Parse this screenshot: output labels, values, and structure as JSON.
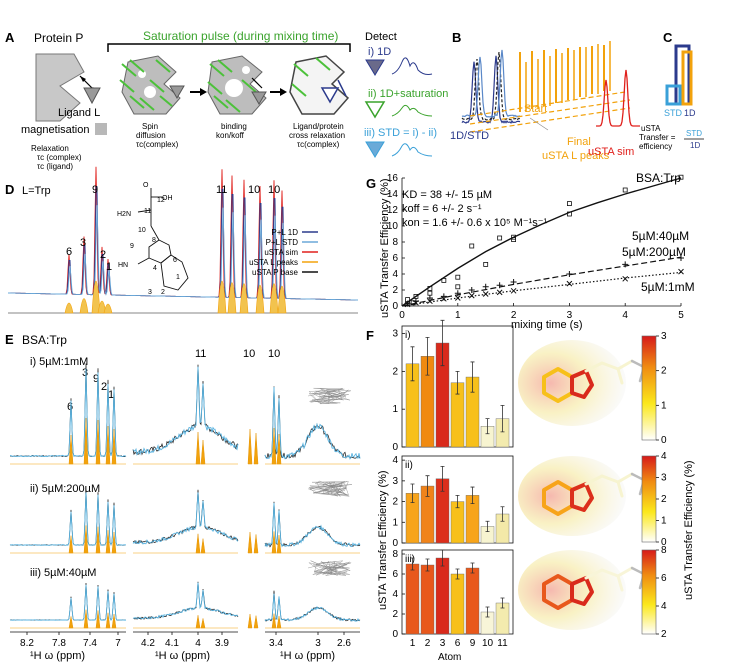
{
  "panel_labels": {
    "A": "A",
    "B": "B",
    "C": "C",
    "D": "D",
    "E": "E",
    "F": "F",
    "G": "G"
  },
  "panelA": {
    "protein": "Protein P",
    "saturation": "Saturation pulse (during mixing time)",
    "ligand": "Ligand L",
    "magnetisation": "magnetisation",
    "detect": "Detect",
    "d1": "i) 1D",
    "d2": "ii) 1D+saturation",
    "d3": "iii) STD = i) - ii)",
    "relax1": "Relaxation",
    "relax2": "τc (complex)",
    "relax3": "τc (ligand)",
    "spin1": "Spin",
    "spin2": "diffusion",
    "spin3": "τc(complex)",
    "bind1": "binding",
    "bind2": "kon/koff",
    "cross1": "Ligand/protein",
    "cross2": "cross relaxation",
    "cross3": "τc(complex)"
  },
  "panelB": {
    "l1": "1D/STD",
    "l2": "Start",
    "l3": "Final",
    "l4": "uSTA L peaks",
    "l5": "uSTA sim"
  },
  "panelC": {
    "std": "STD",
    "d1": "1D",
    "t1": "uSTA",
    "t2": "Transfer =",
    "t3": "efficiency",
    "frac_top": "STD",
    "frac_bot": "1D"
  },
  "panelD": {
    "title": "L=Trp",
    "legend": [
      "P+L 1D",
      "P+L STD",
      "uSTA sim",
      "uSTA L peaks",
      "uSTA P base"
    ],
    "legend_colors": [
      "#2b3a8c",
      "#6aa8d8",
      "#e0201c",
      "#f2a20c",
      "#111111"
    ],
    "peaks": [
      "6",
      "3",
      "9",
      "2",
      "1",
      "11",
      "10",
      "10"
    ],
    "atoms": [
      "O",
      "OH",
      "H2N",
      "12",
      "11",
      "10",
      "9",
      "8",
      "HN",
      "1",
      "2",
      "3",
      "4",
      "5",
      "6",
      "7"
    ]
  },
  "panelE": {
    "title": "BSA:Trp",
    "rows": [
      "i) 5µM:1mM",
      "ii) 5µM:200µM",
      "iii) 5µM:40µM"
    ],
    "peaks": [
      "6",
      "3",
      "9",
      "2",
      "1",
      "11",
      "10",
      "10"
    ],
    "ticks1": [
      "8.2",
      "7.8",
      "7.4",
      "7"
    ],
    "ticks2": [
      "4.2",
      "4.1",
      "4",
      "3.9"
    ],
    "ticks3": [
      "3.4",
      "3",
      "2.6"
    ],
    "xlabel": "¹H ω (ppm)"
  },
  "panelG": {
    "kd": "KD = 38 +/- 15 µM",
    "koff": "koff = 6 +/- 2 s⁻¹",
    "kon": "kon = 1.6 +/- 0.6 x 10⁵ M⁻¹s⁻¹",
    "title": "BSA:Trp",
    "s1": "5µM:40µM",
    "s2": "5µM:200µM",
    "s3": "5µM:1mM",
    "xlabel": "mixing time (s)",
    "ylabel": "uSTA Transfer Efficiency (%)"
  },
  "panelF": {
    "ylabel": "uSTA Transfer Efficiency (%)",
    "xlabel": "Atom",
    "cbar_label": "uSTA Transfer Efficiency (%)",
    "sub": [
      "i)",
      "ii)",
      "iii)"
    ]
  },
  "chart_data": [
    {
      "type": "scatter",
      "title": "BSA:Trp",
      "xlabel": "mixing time (s)",
      "ylabel": "uSTA Transfer Efficiency (%)",
      "xlim": [
        0,
        5
      ],
      "ylim": [
        0,
        16
      ],
      "xticks": [
        0,
        1,
        2,
        3,
        4,
        5
      ],
      "yticks": [
        0,
        2,
        4,
        6,
        8,
        10,
        12,
        14,
        16
      ],
      "series": [
        {
          "name": "5µM:40µM",
          "marker": "square",
          "line": "solid",
          "x": [
            0.1,
            0.2,
            0.25,
            0.5,
            0.5,
            0.75,
            1,
            1,
            1.25,
            1.5,
            1.75,
            2,
            2,
            3,
            3,
            4,
            5
          ],
          "y": [
            0.8,
            0.4,
            1.2,
            1.6,
            2.2,
            3.2,
            2.4,
            3.6,
            7.5,
            5.2,
            8.5,
            8.3,
            8.6,
            11.5,
            12.8,
            14.5,
            16.1
          ],
          "fit": [
            [
              0,
              0
            ],
            [
              0.5,
              2.4
            ],
            [
              1,
              4.7
            ],
            [
              1.5,
              6.8
            ],
            [
              2,
              8.6
            ],
            [
              2.5,
              10.2
            ],
            [
              3,
              11.7
            ],
            [
              3.5,
              12.9
            ],
            [
              4,
              14
            ],
            [
              4.5,
              15
            ],
            [
              5,
              16
            ]
          ]
        },
        {
          "name": "5µM:200µM",
          "marker": "plus",
          "line": "dashed",
          "x": [
            0.1,
            0.25,
            0.5,
            0.75,
            1,
            1.25,
            1.5,
            1.75,
            2,
            3,
            4,
            5
          ],
          "y": [
            0.3,
            0.6,
            1,
            1.2,
            1.6,
            2,
            2.4,
            2.6,
            3,
            4,
            5.2,
            6
          ],
          "fit": [
            [
              0,
              0
            ],
            [
              1,
              1.4
            ],
            [
              2,
              2.7
            ],
            [
              3,
              3.9
            ],
            [
              4,
              5
            ],
            [
              5,
              6.1
            ]
          ]
        },
        {
          "name": "5µM:1mM",
          "marker": "x",
          "line": "dotted",
          "x": [
            0.1,
            0.25,
            0.5,
            0.75,
            1,
            1.25,
            1.5,
            1.75,
            2,
            3,
            4,
            5
          ],
          "y": [
            0.2,
            0.4,
            0.6,
            0.9,
            1,
            1.3,
            1.5,
            1.7,
            1.9,
            2.8,
            3.4,
            4.3
          ],
          "fit": [
            [
              0,
              0
            ],
            [
              1,
              1
            ],
            [
              2,
              1.9
            ],
            [
              3,
              2.7
            ],
            [
              4,
              3.5
            ],
            [
              5,
              4.2
            ]
          ]
        }
      ]
    },
    {
      "type": "bar",
      "title": "i)",
      "categories": [
        "1",
        "2",
        "3",
        "6",
        "9",
        "10",
        "11"
      ],
      "values": [
        2.2,
        2.4,
        2.75,
        1.7,
        1.85,
        0.55,
        0.75
      ],
      "errors": [
        0.45,
        0.5,
        0.6,
        0.3,
        0.4,
        0.2,
        0.35
      ],
      "colors": [
        "#f7c01a",
        "#f08a10",
        "#d92a1c",
        "#f7c01a",
        "#f7c01a",
        "#f7f4d0",
        "#f3ebae"
      ],
      "ylim": [
        0,
        3.2
      ],
      "yticks": [
        0,
        1,
        2,
        3
      ],
      "colorbar": {
        "min": 0,
        "max": 3,
        "ticks": [
          0,
          1,
          2,
          3
        ]
      }
    },
    {
      "type": "bar",
      "title": "ii)",
      "categories": [
        "1",
        "2",
        "3",
        "6",
        "9",
        "10",
        "11"
      ],
      "values": [
        2.4,
        2.75,
        3.1,
        2,
        2.3,
        0.8,
        1.4
      ],
      "errors": [
        0.45,
        0.5,
        0.6,
        0.3,
        0.4,
        0.25,
        0.35
      ],
      "colors": [
        "#f7a41a",
        "#f0831a",
        "#dc2f1c",
        "#f7c01a",
        "#f7a41a",
        "#f7f4d0",
        "#f3e9a8"
      ],
      "ylim": [
        0,
        4.2
      ],
      "yticks": [
        0,
        1,
        2,
        3,
        4
      ],
      "colorbar": {
        "min": 0,
        "max": 4,
        "ticks": [
          0,
          1,
          2,
          3,
          4
        ]
      }
    },
    {
      "type": "bar",
      "title": "iii)",
      "categories": [
        "1",
        "2",
        "3",
        "6",
        "9",
        "10",
        "11"
      ],
      "values": [
        7,
        6.9,
        7.6,
        6,
        6.6,
        2.2,
        3.1
      ],
      "errors": [
        0.6,
        0.6,
        0.8,
        0.5,
        0.5,
        0.5,
        0.5
      ],
      "colors": [
        "#e8581c",
        "#e8581c",
        "#d92a1c",
        "#f7c01a",
        "#e8581c",
        "#f8f5d8",
        "#f3ebae"
      ],
      "ylim": [
        0,
        8.4
      ],
      "yticks": [
        0,
        2,
        4,
        6,
        8
      ],
      "colorbar": {
        "min": 2,
        "max": 8,
        "ticks": [
          2,
          4,
          6,
          8
        ]
      }
    }
  ]
}
